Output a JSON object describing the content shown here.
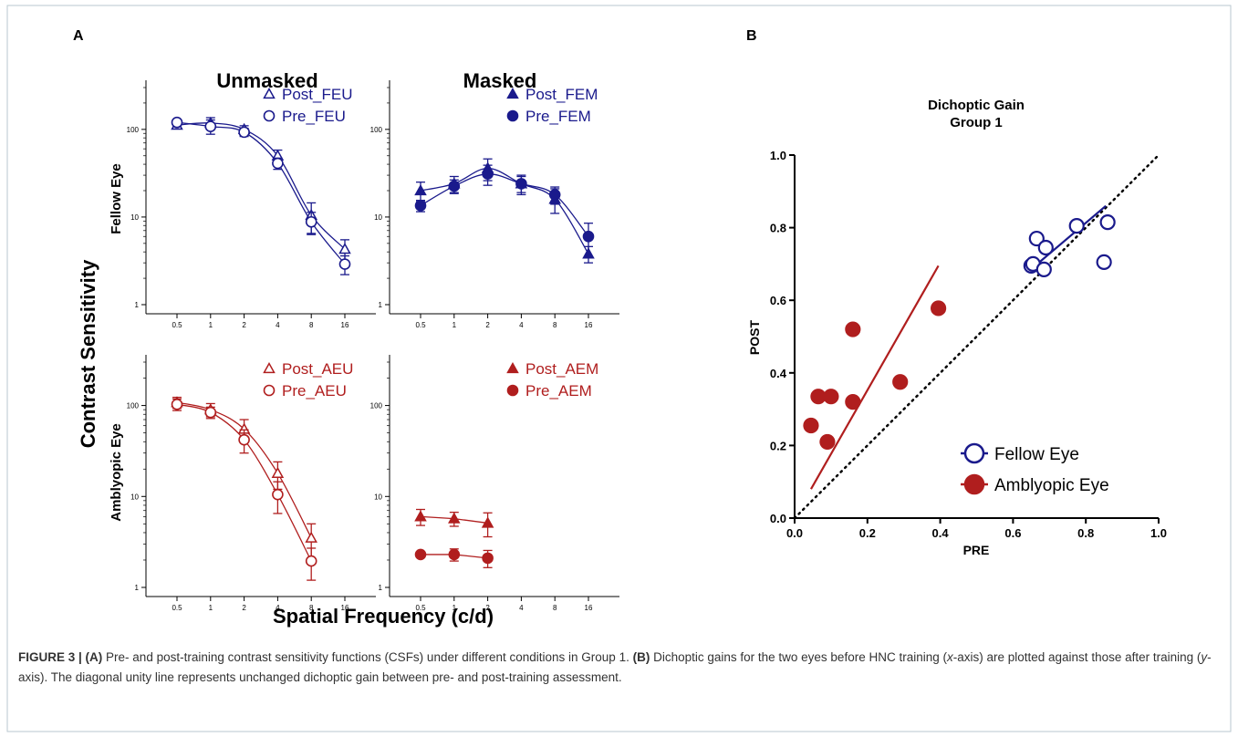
{
  "panel_a": {
    "label": "A",
    "column_headers": [
      "Unmasked",
      "Masked"
    ],
    "row_labels": [
      "Fellow Eye",
      "Amblyopic Eye"
    ],
    "ylabel": "Contrast Sensitivity",
    "xlabel": "Spatial Frequency (c/d)"
  },
  "panel_b": {
    "label": "B",
    "title_line1": "Dichoptic Gain",
    "title_line2": "Group 1",
    "xlabel": "PRE",
    "ylabel": "POST"
  },
  "colors": {
    "fellow": "#1a1a8c",
    "amblyopic": "#b01e1e",
    "axis": "#000000"
  },
  "chart_data": [
    {
      "type": "line",
      "panel": "A",
      "row": "Fellow Eye",
      "column": "Unmasked",
      "xscale": "log",
      "yscale": "log",
      "x": [
        0.5,
        1,
        2,
        4,
        8,
        16
      ],
      "xticks": [
        "0.5",
        "1",
        "2",
        "4",
        "8",
        "16"
      ],
      "yticks": [
        "1",
        "10",
        "100"
      ],
      "ylim": [
        1,
        300
      ],
      "legend_position": "top-right",
      "series": [
        {
          "name": "Post_FEU",
          "marker": "open-triangle",
          "color": "#1a1a8c",
          "values": [
            112,
            118,
            100,
            50,
            10.5,
            4.3
          ],
          "errors": [
            8,
            18,
            10,
            8,
            4,
            1.2
          ]
        },
        {
          "name": "Pre_FEU",
          "marker": "open-circle",
          "color": "#1a1a8c",
          "values": [
            120,
            108,
            93,
            41,
            8.8,
            2.9
          ],
          "errors": [
            10,
            20,
            10,
            6,
            2.5,
            0.7
          ]
        }
      ]
    },
    {
      "type": "line",
      "panel": "A",
      "row": "Fellow Eye",
      "column": "Masked",
      "xscale": "log",
      "yscale": "log",
      "x": [
        0.5,
        1,
        2,
        4,
        8,
        16
      ],
      "xticks": [
        "0.5",
        "1",
        "2",
        "4",
        "8",
        "16"
      ],
      "yticks": [
        "1",
        "10",
        "100"
      ],
      "ylim": [
        1,
        300
      ],
      "legend_position": "top-right",
      "series": [
        {
          "name": "Post_FEM",
          "marker": "filled-triangle",
          "color": "#1a1a8c",
          "values": [
            20,
            24,
            36,
            24,
            16,
            3.8
          ],
          "errors": [
            5,
            5,
            10,
            6,
            5,
            0.8
          ]
        },
        {
          "name": "Pre_FEM",
          "marker": "filled-circle",
          "color": "#1a1a8c",
          "values": [
            13.5,
            22.5,
            31,
            24,
            18,
            6
          ],
          "errors": [
            2,
            4,
            8,
            5,
            4,
            2.5
          ]
        }
      ]
    },
    {
      "type": "line",
      "panel": "A",
      "row": "Amblyopic Eye",
      "column": "Unmasked",
      "xscale": "log",
      "yscale": "log",
      "x": [
        0.5,
        1,
        2,
        4,
        8
      ],
      "xticks": [
        "0.5",
        "1",
        "2",
        "4",
        "8",
        "16"
      ],
      "yticks": [
        "1",
        "10",
        "100"
      ],
      "ylim": [
        1,
        300
      ],
      "legend_position": "top-right",
      "series": [
        {
          "name": "Post_AEU",
          "marker": "open-triangle",
          "color": "#b01e1e",
          "values": [
            108,
            90,
            55,
            18,
            3.5
          ],
          "errors": [
            15,
            15,
            15,
            6,
            1.5
          ]
        },
        {
          "name": "Pre_AEU",
          "marker": "open-circle",
          "color": "#b01e1e",
          "values": [
            103,
            84,
            42,
            10.5,
            1.95
          ],
          "errors": [
            15,
            12,
            12,
            4,
            0.75
          ]
        }
      ]
    },
    {
      "type": "line",
      "panel": "A",
      "row": "Amblyopic Eye",
      "column": "Masked",
      "xscale": "log",
      "yscale": "log",
      "x": [
        0.5,
        1,
        2
      ],
      "xticks": [
        "0.5",
        "1",
        "2",
        "4",
        "8",
        "16"
      ],
      "yticks": [
        "1",
        "10",
        "100"
      ],
      "ylim": [
        1,
        300
      ],
      "legend_position": "top-right",
      "series": [
        {
          "name": "Post_AEM",
          "marker": "filled-triangle",
          "color": "#b01e1e",
          "values": [
            6,
            5.7,
            5.1
          ],
          "errors": [
            1.2,
            1,
            1.5
          ]
        },
        {
          "name": "Pre_AEM",
          "marker": "filled-circle",
          "color": "#b01e1e",
          "values": [
            2.3,
            2.3,
            2.1
          ],
          "errors": [
            0.1,
            0.35,
            0.45
          ]
        }
      ]
    },
    {
      "type": "scatter",
      "panel": "B",
      "title": "Dichoptic Gain Group 1",
      "xlabel": "PRE",
      "ylabel": "POST",
      "xlim": [
        0,
        1
      ],
      "ylim": [
        0,
        1
      ],
      "xticks": [
        "0.0",
        "0.2",
        "0.4",
        "0.6",
        "0.8",
        "1.0"
      ],
      "yticks": [
        "0.0",
        "0.2",
        "0.4",
        "0.6",
        "0.8",
        "1.0"
      ],
      "legend_position": "bottom-right",
      "unity_line": true,
      "series": [
        {
          "name": "Fellow Eye",
          "marker": "open-circle",
          "color": "#1a1a8c",
          "points": [
            [
              0.65,
              0.695
            ],
            [
              0.655,
              0.7
            ],
            [
              0.665,
              0.77
            ],
            [
              0.685,
              0.685
            ],
            [
              0.69,
              0.745
            ],
            [
              0.775,
              0.805
            ],
            [
              0.85,
              0.705
            ],
            [
              0.86,
              0.815
            ]
          ],
          "fit": [
            [
              0.655,
              0.69
            ],
            [
              0.855,
              0.86
            ]
          ]
        },
        {
          "name": "Amblyopic Eye",
          "marker": "filled-circle",
          "color": "#b01e1e",
          "points": [
            [
              0.045,
              0.255
            ],
            [
              0.065,
              0.335
            ],
            [
              0.09,
              0.21
            ],
            [
              0.1,
              0.335
            ],
            [
              0.16,
              0.32
            ],
            [
              0.16,
              0.52
            ],
            [
              0.29,
              0.375
            ],
            [
              0.395,
              0.578
            ]
          ],
          "fit": [
            [
              0.045,
              0.08
            ],
            [
              0.395,
              0.695
            ]
          ]
        }
      ]
    }
  ],
  "caption": {
    "figure_label": "FIGURE 3 | ",
    "a_label": "(A)",
    "a_text": " Pre- and post-training contrast sensitivity functions (CSFs) under different conditions in Group 1. ",
    "b_label": "(B)",
    "b_text_1": " Dichoptic gains for the two eyes before HNC training (",
    "b_x": "x",
    "b_text_2": "-axis) are plotted against those after training (",
    "b_y": "y",
    "b_text_3": "-axis). The diagonal unity line represents unchanged dichoptic gain between pre- and post-training assessment."
  }
}
